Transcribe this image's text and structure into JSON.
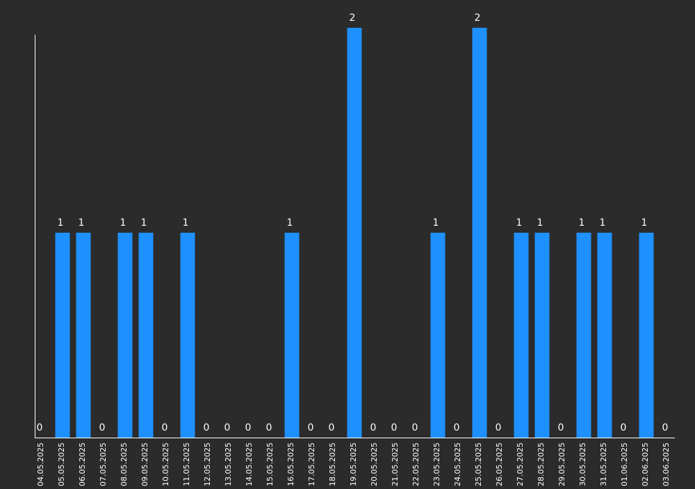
{
  "colors": {
    "background": "#2b2b2b",
    "bar": "#1e90ff",
    "axis": "#ffffff",
    "text": "#ffffff"
  },
  "chart_data": {
    "type": "bar",
    "title": "",
    "xlabel": "",
    "ylabel": "",
    "grid": false,
    "legend": "none",
    "ylim": [
      0,
      2
    ],
    "categories": [
      "04.05.2025",
      "05.05.2025",
      "06.05.2025",
      "07.05.2025",
      "08.05.2025",
      "09.05.2025",
      "10.05.2025",
      "11.05.2025",
      "12.05.2025",
      "13.05.2025",
      "14.05.2025",
      "15.05.2025",
      "16.05.2025",
      "17.05.2025",
      "18.05.2025",
      "19.05.2025",
      "20.05.2025",
      "21.05.2025",
      "22.05.2025",
      "23.05.2025",
      "24.05.2025",
      "25.05.2025",
      "26.05.2025",
      "27.05.2025",
      "28.05.2025",
      "29.05.2025",
      "30.05.2025",
      "31.05.2025",
      "01.06.2025",
      "02.06.2025",
      "03.06.2025"
    ],
    "values": [
      0,
      1,
      1,
      0,
      1,
      1,
      0,
      1,
      0,
      0,
      0,
      0,
      1,
      0,
      0,
      2,
      0,
      0,
      0,
      1,
      0,
      2,
      0,
      1,
      1,
      0,
      1,
      1,
      0,
      1,
      0
    ]
  }
}
